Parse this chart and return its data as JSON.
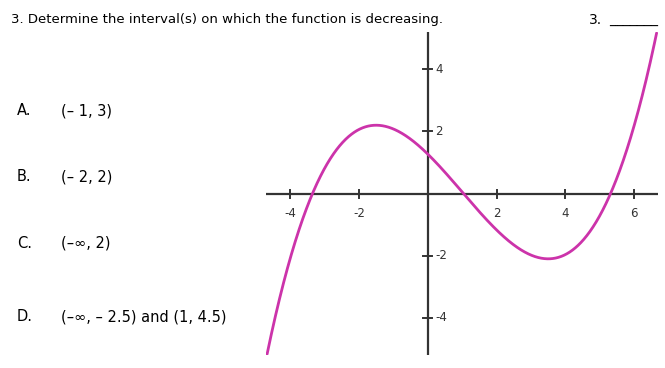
{
  "title": "3. Determine the interval(s) on which the function is decreasing.",
  "question_number": "3.",
  "answer_label": "_______",
  "options": [
    {
      "label": "A.",
      "text": "(– 1, 3)"
    },
    {
      "label": "B.",
      "text": "(– 2, 2)"
    },
    {
      "label": "C.",
      "text": "(–∞, 2)"
    },
    {
      "label": "D.",
      "text": "(–∞, – 2.5) and (1, 4.5)"
    }
  ],
  "curve_color": "#cc33aa",
  "grid_color": "#c5e8f0",
  "axis_color": "#333333",
  "bg_color": "#ffffff",
  "x_lim": [
    -4.7,
    6.7
  ],
  "y_lim": [
    -5.2,
    5.2
  ],
  "x_ticks": [
    -4,
    -2,
    2,
    4,
    6
  ],
  "y_ticks": [
    -4,
    -2,
    2,
    4
  ],
  "cubic_k": 0.2064,
  "cubic_d": 1.271
}
